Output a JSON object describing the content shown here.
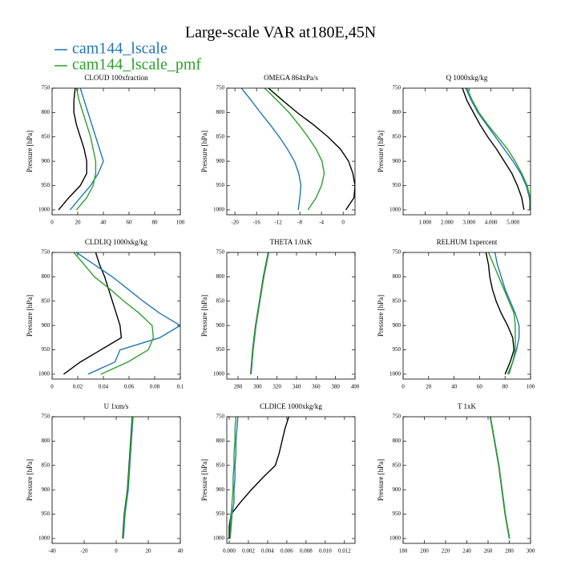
{
  "title": "Large-scale VAR at180E,45N",
  "legend": [
    {
      "name": "cam144_lscale",
      "color": "#1f77b4"
    },
    {
      "name": "cam144_lscale_pmf",
      "color": "#2ca02c"
    }
  ],
  "chart_data": [
    {
      "type": "line",
      "title": "CLOUD  100xfraction",
      "ylabel": "Pressure [hPa]",
      "y": [
        750,
        775,
        800,
        825,
        850,
        875,
        900,
        925,
        950,
        975,
        1000
      ],
      "xlim": [
        0,
        100
      ],
      "xticks": [
        0,
        20,
        40,
        60,
        80,
        100
      ],
      "ylim": [
        1010,
        750
      ],
      "yticks": [
        750,
        800,
        850,
        900,
        950,
        1000
      ],
      "series": [
        {
          "color": "#000000",
          "values": [
            18,
            17,
            17,
            19,
            22,
            25,
            27,
            27,
            22,
            13,
            5
          ]
        },
        {
          "color": "#1f77b4",
          "values": [
            22,
            25,
            28,
            31,
            34,
            37,
            40,
            36,
            30,
            22,
            14
          ]
        },
        {
          "color": "#2ca02c",
          "values": [
            19,
            21,
            24,
            27,
            30,
            32,
            34,
            34,
            32,
            27,
            19
          ]
        }
      ]
    },
    {
      "type": "line",
      "title": "OMEGA  864xPa/s",
      "ylabel": "Pressure [hPa]",
      "y": [
        750,
        775,
        800,
        825,
        850,
        875,
        900,
        925,
        950,
        975,
        1000
      ],
      "xlim": [
        -21.5,
        2.2
      ],
      "xticks": [
        -20,
        -16,
        -12,
        -8,
        -4,
        0
      ],
      "ylim": [
        1010,
        750
      ],
      "yticks": [
        750,
        800,
        850,
        900,
        950,
        1000
      ],
      "series": [
        {
          "color": "#000000",
          "values": [
            -13.8,
            -11.2,
            -8.5,
            -5.5,
            -2.8,
            -0.5,
            1,
            1.8,
            2.2,
            2,
            0.5
          ]
        },
        {
          "color": "#1f77b4",
          "values": [
            -18.8,
            -17,
            -15.3,
            -13.5,
            -11.8,
            -10.3,
            -9,
            -8.2,
            -7.8,
            -8,
            -8.3
          ]
        },
        {
          "color": "#2ca02c",
          "values": [
            -14.5,
            -12.2,
            -10,
            -8.2,
            -6.5,
            -5,
            -3.9,
            -3.5,
            -4,
            -5,
            -6.5
          ]
        }
      ]
    },
    {
      "type": "line",
      "title": "Q  1000xkg/kg",
      "ylabel": "Pressure [hPa]",
      "y": [
        750,
        775,
        800,
        825,
        850,
        875,
        900,
        925,
        950,
        975,
        1000
      ],
      "xlim": [
        0,
        5.8
      ],
      "xticks": [
        {
          "value": 1,
          "label": "1.000"
        },
        {
          "value": 2,
          "label": "2.000"
        },
        {
          "value": 3,
          "label": "3.000"
        },
        {
          "value": 4,
          "label": "4.000"
        },
        {
          "value": 5,
          "label": "5.000"
        }
      ],
      "ylim": [
        1010,
        750
      ],
      "yticks": [
        750,
        800,
        850,
        900,
        950,
        1000
      ],
      "series": [
        {
          "color": "#000000",
          "values": [
            2.7,
            2.9,
            3.2,
            3.5,
            3.85,
            4.25,
            4.6,
            4.95,
            5.2,
            5.4,
            5.5
          ]
        },
        {
          "color": "#1f77b4",
          "values": [
            2.85,
            3.1,
            3.4,
            3.8,
            4.2,
            4.6,
            5.0,
            5.35,
            5.6,
            5.75,
            5.8
          ]
        },
        {
          "color": "#2ca02c",
          "values": [
            2.9,
            3.15,
            3.45,
            3.85,
            4.3,
            4.75,
            5.1,
            5.4,
            5.65,
            5.78,
            5.75
          ]
        }
      ]
    },
    {
      "type": "line",
      "title": "CLDLIQ  1000xkg/kg",
      "ylabel": "Pressure [hPa]",
      "y": [
        750,
        775,
        800,
        825,
        850,
        875,
        900,
        925,
        950,
        975,
        1000
      ],
      "xlim": [
        0,
        0.1
      ],
      "xticks": [
        0,
        0.02,
        0.04,
        0.06,
        0.08,
        0.1
      ],
      "ylim": [
        1010,
        750
      ],
      "yticks": [
        750,
        800,
        850,
        900,
        950,
        1000
      ],
      "series": [
        {
          "color": "#000000",
          "values": [
            0.034,
            0.037,
            0.041,
            0.044,
            0.047,
            0.05,
            0.053,
            0.054,
            0.038,
            0.022,
            0.009
          ]
        },
        {
          "color": "#1f77b4",
          "values": [
            0.019,
            0.033,
            0.047,
            0.059,
            0.071,
            0.084,
            0.1,
            0.084,
            0.053,
            0.049,
            0.028
          ]
        },
        {
          "color": "#2ca02c",
          "values": [
            0.017,
            0.025,
            0.033,
            0.045,
            0.056,
            0.068,
            0.078,
            0.079,
            0.075,
            0.059,
            0.038
          ]
        }
      ]
    },
    {
      "type": "line",
      "title": "THETA  1.0xK",
      "ylabel": "Pressure [hPa]",
      "y": [
        750,
        775,
        800,
        825,
        850,
        875,
        900,
        925,
        950,
        975,
        1000
      ],
      "xlim": [
        268.5,
        400
      ],
      "xticks": [
        280,
        300,
        320,
        340,
        360,
        380,
        400
      ],
      "ylim": [
        1010,
        750
      ],
      "yticks": [
        750,
        800,
        850,
        900,
        950,
        1000
      ],
      "series": [
        {
          "color": "#000000",
          "values": [
            311,
            308.5,
            306,
            304,
            302,
            300,
            298,
            296.5,
            295,
            294,
            293
          ]
        },
        {
          "color": "#1f77b4",
          "values": [
            311.5,
            309,
            306.5,
            304.5,
            302.5,
            300.5,
            298.5,
            297,
            295.5,
            294.5,
            293.5
          ]
        },
        {
          "color": "#2ca02c",
          "values": [
            311.2,
            308.8,
            306.3,
            304.2,
            302.2,
            300.2,
            298.2,
            296.8,
            295.2,
            294.2,
            293.2
          ]
        }
      ]
    },
    {
      "type": "line",
      "title": "RELHUM  1xpercent",
      "ylabel": "Pressure [hPa]",
      "y": [
        750,
        775,
        800,
        825,
        850,
        875,
        900,
        925,
        950,
        975,
        1000
      ],
      "xlim": [
        0,
        100
      ],
      "xticks": [
        0,
        20,
        40,
        60,
        80,
        100
      ],
      "ylim": [
        1010,
        750
      ],
      "yticks": [
        750,
        800,
        850,
        900,
        950,
        1000
      ],
      "series": [
        {
          "color": "#000000",
          "values": [
            65,
            67,
            68,
            70,
            73,
            77,
            82,
            86,
            87,
            84,
            80
          ]
        },
        {
          "color": "#1f77b4",
          "values": [
            72,
            74,
            77,
            80,
            84,
            88,
            91,
            91,
            89,
            86,
            83
          ]
        },
        {
          "color": "#2ca02c",
          "values": [
            67,
            71,
            75,
            79,
            83,
            87,
            88,
            88,
            88,
            86,
            82
          ]
        }
      ]
    },
    {
      "type": "line",
      "title": "U  1xm/s",
      "ylabel": "Pressure [hPa]",
      "y": [
        750,
        775,
        800,
        825,
        850,
        875,
        900,
        925,
        950,
        975,
        1000
      ],
      "xlim": [
        -40,
        40
      ],
      "xticks": [
        -40,
        -20,
        0,
        20,
        40
      ],
      "ylim": [
        1010,
        750
      ],
      "yticks": [
        750,
        800,
        850,
        900,
        950,
        1000
      ],
      "series": [
        {
          "color": "#000000",
          "values": [
            10,
            9.5,
            9,
            8.5,
            8,
            7.5,
            7,
            6,
            5,
            4.5,
            4
          ]
        },
        {
          "color": "#1f77b4",
          "values": [
            10.5,
            10,
            9.5,
            9,
            8.5,
            8,
            7.5,
            6.5,
            5.5,
            5,
            4.5
          ]
        },
        {
          "color": "#2ca02c",
          "values": [
            10.2,
            9.7,
            9.2,
            8.7,
            8.2,
            7.7,
            7.2,
            6.2,
            5.2,
            4.7,
            4.2
          ]
        }
      ]
    },
    {
      "type": "line",
      "title": "CLDICE  1000xkg/kg",
      "ylabel": "Pressure [hPa]",
      "y": [
        750,
        775,
        800,
        825,
        850,
        875,
        900,
        925,
        950,
        975,
        1000
      ],
      "xlim": [
        -0.00025,
        0.0131
      ],
      "xticks": [
        {
          "value": 0,
          "label": "0.000"
        },
        0.002,
        0.004,
        0.006,
        0.008,
        {
          "value": 0.01,
          "label": "0.010"
        },
        0.012
      ],
      "ylim": [
        1010,
        750
      ],
      "yticks": [
        750,
        800,
        850,
        900,
        950,
        1000
      ],
      "series": [
        {
          "color": "#000000",
          "values": [
            0.0062,
            0.0058,
            0.0055,
            0.0052,
            0.0048,
            0.0035,
            0.0023,
            0.0012,
            0.0002,
            0.0,
            0.0
          ]
        },
        {
          "color": "#1f77b4",
          "values": [
            0.0009,
            0.0008,
            0.0007,
            0.0007,
            0.0006,
            0.0006,
            0.0005,
            0.0005,
            0.0003,
            0.0002,
            0.0001
          ]
        },
        {
          "color": "#2ca02c",
          "values": [
            0.0007,
            0.0006,
            0.0006,
            0.0005,
            0.0005,
            0.0004,
            0.0004,
            0.0003,
            0.0002,
            0.0001,
            0.0001
          ]
        }
      ]
    },
    {
      "type": "line",
      "title": "T  1xK",
      "ylabel": "Pressure [hPa]",
      "y": [
        750,
        775,
        800,
        825,
        850,
        875,
        900,
        925,
        950,
        975,
        1000
      ],
      "xlim": [
        180,
        300
      ],
      "xticks": [
        180,
        200,
        220,
        240,
        260,
        280,
        300
      ],
      "ylim": [
        1010,
        750
      ],
      "yticks": [
        750,
        800,
        850,
        900,
        950,
        1000
      ],
      "series": [
        {
          "color": "#000000",
          "values": [
            262,
            264,
            266,
            268,
            270,
            271.5,
            273,
            274.5,
            276,
            278,
            280
          ]
        },
        {
          "color": "#1f77b4",
          "values": [
            262.3,
            264.3,
            266.3,
            268.3,
            270.3,
            271.8,
            273.3,
            274.8,
            276.3,
            278.3,
            280.3
          ]
        },
        {
          "color": "#2ca02c",
          "values": [
            262.1,
            264.1,
            266.1,
            268.1,
            270.1,
            271.6,
            273.1,
            274.6,
            276.1,
            278.1,
            280.1
          ]
        }
      ]
    }
  ]
}
